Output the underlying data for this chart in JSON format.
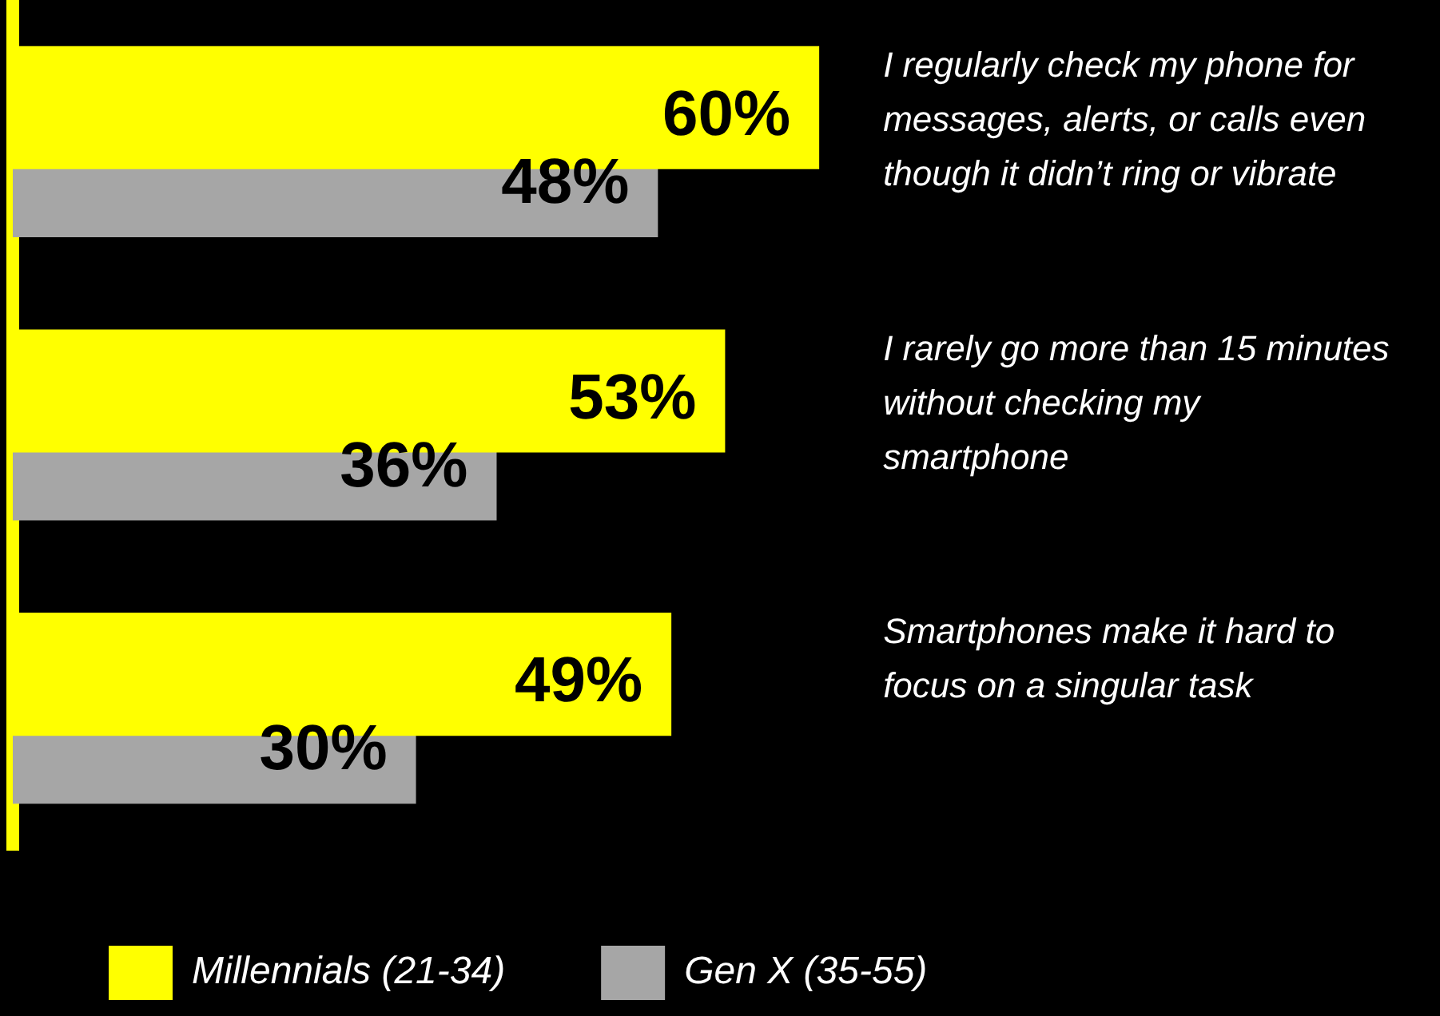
{
  "chart_data": {
    "type": "bar",
    "orientation": "horizontal",
    "categories": [
      "I regularly check my phone for messages, alerts, or calls even though it didn’t ring or vibrate",
      "I rarely go more than 15 minutes without checking my smartphone",
      "Smartphones make it hard to focus on a singular task"
    ],
    "series": [
      {
        "name": "Millennials (21-34)",
        "color": "#ffff00",
        "values": [
          60,
          53,
          49
        ],
        "value_labels": [
          "60%",
          "53%",
          "49%"
        ]
      },
      {
        "name": "Gen X (35-55)",
        "color": "#a6a6a6",
        "values": [
          48,
          36,
          30
        ],
        "value_labels": [
          "48%",
          "36%",
          "30%"
        ]
      }
    ],
    "legend": "bottom",
    "tick_labels": false
  }
}
